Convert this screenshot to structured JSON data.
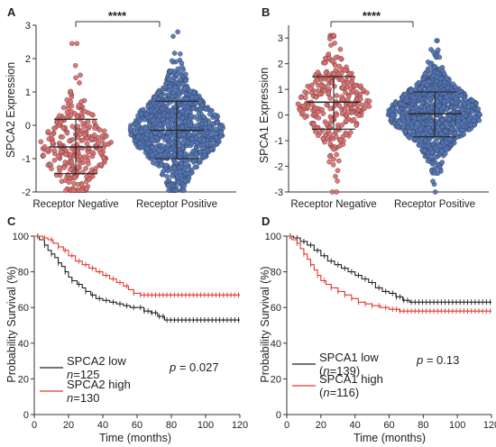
{
  "panels": {
    "A": {
      "letter": "A",
      "ylabel": "SPCA2 Expression",
      "sig": "****",
      "categories": [
        "Receptor Negative",
        "Receptor Positive"
      ]
    },
    "B": {
      "letter": "B",
      "ylabel": "SPCA1 Expression",
      "sig": "****",
      "categories": [
        "Receptor Negative",
        "Receptor Positive"
      ]
    },
    "C": {
      "letter": "C",
      "ylabel": "Probability Survival (%)",
      "xlabel": "Time (months)",
      "legend": {
        "low": "SPCA2 low",
        "low_n": "=125",
        "high": "SPCA2 high",
        "high_n": "=130"
      },
      "n_prefix": "n",
      "p_prefix": "p",
      "p_value": " = 0.027"
    },
    "D": {
      "letter": "D",
      "ylabel": "Probability Survival (%)",
      "xlabel": "Time (months)",
      "legend": {
        "low": "SPCA1 low",
        "low_n": "=139",
        "high": "SPCA1 high",
        "high_n": "=116"
      },
      "n_prefix": "n",
      "p_prefix": "p",
      "p_value": " = 0.13",
      "open_paren": "(",
      "close_paren": ")"
    }
  },
  "chart_data": [
    {
      "panel": "A",
      "type": "scatter",
      "ylabel": "SPCA2 Expression",
      "ylim": [
        -2,
        3
      ],
      "yticks": [
        -2,
        -1,
        0,
        1,
        2,
        3
      ],
      "categories": [
        "Receptor Negative",
        "Receptor Positive"
      ],
      "series": [
        {
          "category": "Receptor Negative",
          "n": 300,
          "mean": -0.65,
          "sd_upper": 0.18,
          "sd_lower": -1.45,
          "max": 2.45,
          "min": -1.95,
          "color": "#e06b6b"
        },
        {
          "category": "Receptor Positive",
          "n": 1000,
          "mean": -0.15,
          "sd_upper": 0.72,
          "sd_lower": -1.0,
          "max": 2.8,
          "min": -1.95,
          "color": "#4f74b8"
        }
      ],
      "significance": "****"
    },
    {
      "panel": "B",
      "type": "scatter",
      "ylabel": "SPCA1 Expression",
      "ylim": [
        -3,
        3.5
      ],
      "yticks": [
        -3,
        -2,
        -1,
        0,
        1,
        2,
        3
      ],
      "categories": [
        "Receptor Negative",
        "Receptor Positive"
      ],
      "series": [
        {
          "category": "Receptor Negative",
          "n": 300,
          "mean": 0.5,
          "sd_upper": 1.5,
          "sd_lower": -0.55,
          "max": 3.1,
          "min": -3.0,
          "color": "#e06b6b"
        },
        {
          "category": "Receptor Positive",
          "n": 1000,
          "mean": 0.05,
          "sd_upper": 0.9,
          "sd_lower": -0.85,
          "max": 2.9,
          "min": -3.0,
          "color": "#4f74b8"
        }
      ],
      "significance": "****"
    },
    {
      "panel": "C",
      "type": "line",
      "xlabel": "Time (months)",
      "ylabel": "Probability Survival (%)",
      "xlim": [
        0,
        120
      ],
      "ylim": [
        0,
        100
      ],
      "xticks": [
        0,
        20,
        40,
        60,
        80,
        100,
        120
      ],
      "yticks": [
        0,
        20,
        40,
        60,
        80,
        100
      ],
      "series": [
        {
          "name": "SPCA2 low",
          "n": 125,
          "color": "#222222",
          "points": [
            [
              0,
              100
            ],
            [
              3,
              98
            ],
            [
              6,
              95
            ],
            [
              8,
              92
            ],
            [
              10,
              90
            ],
            [
              12,
              88
            ],
            [
              14,
              85
            ],
            [
              16,
              83
            ],
            [
              18,
              80
            ],
            [
              20,
              77
            ],
            [
              22,
              75
            ],
            [
              25,
              73
            ],
            [
              28,
              71
            ],
            [
              30,
              69
            ],
            [
              33,
              67
            ],
            [
              36,
              65
            ],
            [
              40,
              64
            ],
            [
              44,
              63
            ],
            [
              48,
              62
            ],
            [
              52,
              61
            ],
            [
              56,
              60
            ],
            [
              60,
              60
            ],
            [
              64,
              58
            ],
            [
              68,
              57
            ],
            [
              72,
              55
            ],
            [
              76,
              53
            ],
            [
              120,
              53
            ]
          ]
        },
        {
          "name": "SPCA2 high",
          "n": 130,
          "color": "#e0392e",
          "points": [
            [
              0,
              100
            ],
            [
              5,
              99
            ],
            [
              8,
              98
            ],
            [
              11,
              96
            ],
            [
              14,
              94
            ],
            [
              17,
              92
            ],
            [
              20,
              89
            ],
            [
              24,
              86
            ],
            [
              28,
              84
            ],
            [
              32,
              82
            ],
            [
              36,
              80
            ],
            [
              40,
              78
            ],
            [
              44,
              76
            ],
            [
              48,
              74
            ],
            [
              52,
              72
            ],
            [
              55,
              70
            ],
            [
              58,
              68
            ],
            [
              62,
              67
            ],
            [
              120,
              67
            ]
          ]
        }
      ],
      "annotation": "p = 0.027"
    },
    {
      "panel": "D",
      "type": "line",
      "xlabel": "Time (months)",
      "ylabel": "Probability Survival (%)",
      "xlim": [
        0,
        120
      ],
      "ylim": [
        0,
        100
      ],
      "xticks": [
        0,
        20,
        40,
        60,
        80,
        100,
        120
      ],
      "yticks": [
        0,
        20,
        40,
        60,
        80,
        100
      ],
      "series": [
        {
          "name": "SPCA1 low",
          "n": 139,
          "color": "#222222",
          "points": [
            [
              0,
              100
            ],
            [
              4,
              99
            ],
            [
              8,
              97
            ],
            [
              12,
              95
            ],
            [
              16,
              92
            ],
            [
              20,
              89
            ],
            [
              24,
              86
            ],
            [
              28,
              84
            ],
            [
              32,
              82
            ],
            [
              36,
              80
            ],
            [
              40,
              78
            ],
            [
              44,
              76
            ],
            [
              48,
              74
            ],
            [
              52,
              71
            ],
            [
              56,
              69
            ],
            [
              60,
              68
            ],
            [
              64,
              66
            ],
            [
              68,
              64
            ],
            [
              72,
              63
            ],
            [
              120,
              63
            ]
          ]
        },
        {
          "name": "SPCA1 high",
          "n": 116,
          "color": "#e0392e",
          "points": [
            [
              0,
              100
            ],
            [
              3,
              98
            ],
            [
              6,
              96
            ],
            [
              8,
              93
            ],
            [
              10,
              90
            ],
            [
              12,
              87
            ],
            [
              14,
              84
            ],
            [
              16,
              81
            ],
            [
              18,
              78
            ],
            [
              20,
              75
            ],
            [
              23,
              73
            ],
            [
              26,
              71
            ],
            [
              30,
              69
            ],
            [
              34,
              67
            ],
            [
              38,
              65
            ],
            [
              42,
              63
            ],
            [
              46,
              62
            ],
            [
              50,
              61
            ],
            [
              55,
              60
            ],
            [
              60,
              59
            ],
            [
              66,
              58
            ],
            [
              72,
              58
            ],
            [
              120,
              58
            ]
          ]
        }
      ],
      "annotation": "p = 0.13"
    }
  ]
}
